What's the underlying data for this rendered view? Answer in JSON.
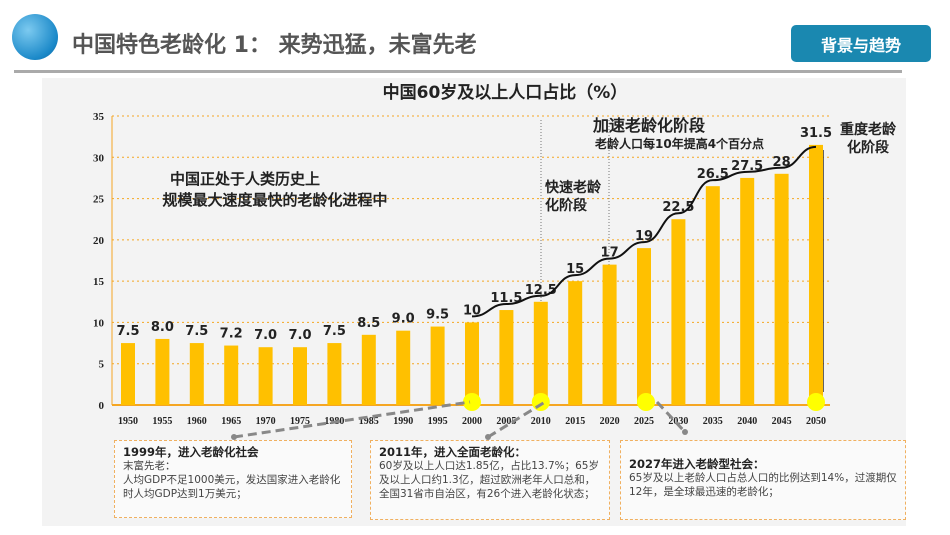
{
  "header": {
    "title": "中国特色老龄化 1： 来势迅猛，未富先老",
    "button": "背景与趋势",
    "logo_icon": "globe-icon"
  },
  "chart_data": {
    "type": "bar",
    "title": "中国60岁及以上人口占比（%）",
    "categories": [
      "1950",
      "1955",
      "1960",
      "1965",
      "1970",
      "1975",
      "1980",
      "1985",
      "1990",
      "1995",
      "2000",
      "2005",
      "2010",
      "2015",
      "2020",
      "2025",
      "2030",
      "2035",
      "2040",
      "2045",
      "2050"
    ],
    "values": [
      7.5,
      8.0,
      7.5,
      7.2,
      7.0,
      7.0,
      7.5,
      8.5,
      9.0,
      9.5,
      10,
      11.5,
      12.5,
      15,
      17,
      19,
      22.5,
      26.5,
      27.5,
      28,
      31.5
    ],
    "data_labels": [
      "7.5",
      "8.0",
      "7.5",
      "7.2",
      "7.0",
      "7.0",
      "7.5",
      "8.5",
      "9.0",
      "9.5",
      "10",
      "11.5",
      "12.5",
      "15",
      "17",
      "19",
      "22.5",
      "26.5",
      "27.5",
      "28",
      "31.5"
    ],
    "ylim": [
      0,
      35
    ],
    "yticks": [
      "0",
      "5",
      "10",
      "15",
      "20",
      "25",
      "30",
      "35"
    ],
    "grid": true,
    "bar_color": "#ffc000",
    "trend_line_from": "2000",
    "annotations": {
      "main": [
        "中国正处于人类历史上",
        "规模最大速度最快的老龄化进程中"
      ],
      "fast": [
        "快速老龄",
        "化阶段"
      ],
      "accel_title": "加速老龄化阶段",
      "accel_sub": "老龄人口每10年提高4个百分点",
      "heavy": [
        "重度老龄",
        "化阶段"
      ]
    }
  },
  "notes": [
    {
      "title": "1999年，进入老龄化社会",
      "lines": [
        "末富先老：",
        "人均GDP不足1000美元，发达国家进入老龄化时人均GDP达到1万美元；"
      ]
    },
    {
      "title": "2011年，进入全面老龄化：",
      "lines": [
        "60岁及以上人口达1.85亿，占比13.7%；65岁及以上人口约1.3亿，超过欧洲老年人口总和，全国31省市自治区，有26个进入老龄化状态；"
      ]
    },
    {
      "title": "2027年进入老龄型社会：",
      "lines": [
        "65岁及以上老龄人口占总人口的比例达到14%，过渡期仅12年，是全球最迅速的老龄化；"
      ]
    }
  ]
}
